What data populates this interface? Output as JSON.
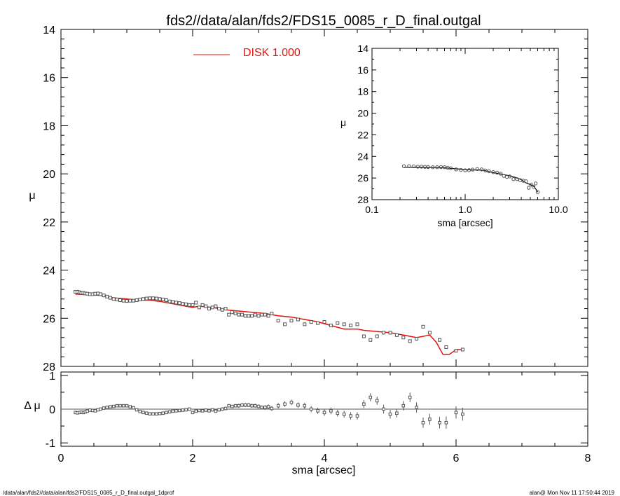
{
  "title": "fds2//data/alan/fds2/FDS15_0085_r_D_final.outgal",
  "footer_left": "/data/alan/fds2//data/alan/fds2/FDS15_0085_r_D_final.outgal_1dprof",
  "footer_right": "alan@  Mon Nov 11 17:50:44 2019",
  "colors": {
    "model": "#e8100a",
    "data": "#555555",
    "axes": "#000000"
  },
  "chart_data": [
    {
      "id": "main",
      "type": "scatter",
      "xlabel": "sma [arcsec]",
      "ylabel": "μ",
      "xlim": [
        0,
        8
      ],
      "ylim": [
        28,
        14
      ],
      "xticks": [
        0,
        2,
        4,
        6,
        8
      ],
      "yticks": [
        14,
        16,
        18,
        20,
        22,
        24,
        26,
        28
      ],
      "legend": {
        "label": "DISK  1.000",
        "placement": "top-center"
      },
      "series": [
        {
          "name": "DISK  1.000",
          "kind": "line",
          "x": [
            0.22,
            0.4,
            0.6,
            0.7,
            0.8,
            1.0,
            1.2,
            1.35,
            1.5,
            1.7,
            1.9,
            2.0,
            2.1,
            2.3,
            2.5,
            2.7,
            2.9,
            3.1,
            3.3,
            3.5,
            3.7,
            3.9,
            4.1,
            4.3,
            4.5,
            4.6,
            4.8,
            5.0,
            5.2,
            5.4,
            5.6,
            5.7,
            5.8,
            5.9,
            6.0,
            6.1
          ],
          "y": [
            25.0,
            25.02,
            25.05,
            25.1,
            25.15,
            25.2,
            25.25,
            25.25,
            25.3,
            25.4,
            25.5,
            25.55,
            25.5,
            25.55,
            25.65,
            25.7,
            25.75,
            25.8,
            25.9,
            25.95,
            26.05,
            26.15,
            26.3,
            26.45,
            26.45,
            26.5,
            26.55,
            26.6,
            26.7,
            26.8,
            26.7,
            27.0,
            27.5,
            27.5,
            27.3,
            27.3
          ]
        },
        {
          "kind": "points",
          "x": [
            0.22,
            0.25,
            0.28,
            0.31,
            0.34,
            0.37,
            0.4,
            0.44,
            0.48,
            0.52,
            0.56,
            0.6,
            0.65,
            0.7,
            0.75,
            0.8,
            0.85,
            0.9,
            0.95,
            1.0,
            1.05,
            1.1,
            1.15,
            1.2,
            1.25,
            1.3,
            1.35,
            1.4,
            1.45,
            1.5,
            1.55,
            1.6,
            1.65,
            1.7,
            1.75,
            1.8,
            1.85,
            1.9,
            1.95,
            2.0,
            2.05,
            2.1,
            2.15,
            2.2,
            2.25,
            2.3,
            2.35,
            2.4,
            2.45,
            2.5,
            2.55,
            2.6,
            2.65,
            2.7,
            2.75,
            2.8,
            2.85,
            2.9,
            2.95,
            3.0,
            3.05,
            3.1,
            3.15,
            3.2,
            3.3,
            3.4,
            3.5,
            3.6,
            3.7,
            3.8,
            3.9,
            4.0,
            4.1,
            4.2,
            4.3,
            4.4,
            4.5,
            4.6,
            4.7,
            4.8,
            4.9,
            5.0,
            5.1,
            5.2,
            5.3,
            5.4,
            5.5,
            5.6,
            5.75,
            5.85,
            6.0,
            6.1
          ],
          "y": [
            24.9,
            24.9,
            24.92,
            24.95,
            24.95,
            24.97,
            24.98,
            25.0,
            25.0,
            24.98,
            24.97,
            25.0,
            25.05,
            25.1,
            25.15,
            25.2,
            25.22,
            25.25,
            25.27,
            25.28,
            25.27,
            25.27,
            25.25,
            25.22,
            25.2,
            25.18,
            25.17,
            25.17,
            25.18,
            25.2,
            25.22,
            25.25,
            25.3,
            25.32,
            25.35,
            25.37,
            25.4,
            25.42,
            25.45,
            25.45,
            25.35,
            25.55,
            25.45,
            25.5,
            25.6,
            25.55,
            25.5,
            25.6,
            25.65,
            25.6,
            25.85,
            25.75,
            25.8,
            25.85,
            25.85,
            25.9,
            25.9,
            25.9,
            25.85,
            25.9,
            25.85,
            25.85,
            25.9,
            25.8,
            26.1,
            26.25,
            26.1,
            26.05,
            26.25,
            26.15,
            26.2,
            26.15,
            26.3,
            26.2,
            26.25,
            26.3,
            26.25,
            26.75,
            26.9,
            26.75,
            26.6,
            26.6,
            26.7,
            26.8,
            26.95,
            26.85,
            26.35,
            26.6,
            26.9,
            27.2,
            27.35,
            27.3
          ]
        }
      ]
    },
    {
      "id": "inset",
      "type": "scatter",
      "xlabel": "sma [arcsec]",
      "ylabel": "μ",
      "xscale": "log",
      "xlim": [
        0.1,
        10
      ],
      "ylim": [
        28,
        14
      ],
      "xticks": [
        0.1,
        1,
        10
      ],
      "xticklabels": [
        "0.1",
        "1.0",
        "10.0"
      ],
      "yticks": [
        14,
        16,
        18,
        20,
        22,
        24,
        26,
        28
      ],
      "series": [
        {
          "kind": "line",
          "x": [
            0.22,
            0.3,
            0.4,
            0.5,
            0.6,
            0.7,
            0.8,
            1.0,
            1.2,
            1.4,
            1.6,
            1.8,
            2.0,
            2.5,
            3.0,
            3.5,
            4.0,
            4.5,
            5.0,
            5.5,
            6.0
          ],
          "y": [
            25.0,
            25.02,
            25.02,
            25.03,
            25.05,
            25.1,
            25.15,
            25.2,
            25.25,
            25.25,
            25.3,
            25.4,
            25.5,
            25.65,
            25.8,
            25.95,
            26.15,
            26.45,
            26.6,
            26.8,
            27.3
          ]
        },
        {
          "kind": "points",
          "x": [
            0.22,
            0.25,
            0.28,
            0.31,
            0.34,
            0.37,
            0.4,
            0.45,
            0.5,
            0.55,
            0.6,
            0.65,
            0.7,
            0.8,
            0.9,
            1.0,
            1.1,
            1.2,
            1.35,
            1.5,
            1.65,
            1.8,
            2.0,
            2.2,
            2.4,
            2.6,
            2.8,
            3.0,
            3.3,
            3.6,
            3.9,
            4.2,
            4.5,
            4.8,
            5.1,
            5.4,
            5.7,
            6.0
          ],
          "y": [
            24.9,
            24.9,
            24.92,
            24.95,
            24.95,
            24.97,
            24.98,
            25.0,
            25.0,
            24.98,
            25.0,
            25.05,
            25.1,
            25.2,
            25.25,
            25.28,
            25.27,
            25.22,
            25.17,
            25.2,
            25.3,
            25.37,
            25.45,
            25.5,
            25.6,
            25.8,
            25.9,
            25.85,
            26.1,
            26.1,
            26.2,
            26.25,
            26.3,
            26.9,
            26.6,
            26.8,
            26.5,
            27.3
          ]
        }
      ]
    },
    {
      "id": "residual",
      "type": "scatter",
      "xlabel": "sma [arcsec]",
      "ylabel": "Δ μ",
      "xlim": [
        0,
        8
      ],
      "ylim": [
        -1.1,
        1.1
      ],
      "xticks": [
        0,
        2,
        4,
        6,
        8
      ],
      "yticks": [
        -1,
        0,
        1
      ],
      "series": [
        {
          "kind": "errorbar",
          "x": [
            0.22,
            0.25,
            0.28,
            0.31,
            0.34,
            0.37,
            0.4,
            0.44,
            0.48,
            0.52,
            0.56,
            0.6,
            0.65,
            0.7,
            0.75,
            0.8,
            0.85,
            0.9,
            0.95,
            1.0,
            1.05,
            1.1,
            1.15,
            1.2,
            1.25,
            1.3,
            1.35,
            1.4,
            1.45,
            1.5,
            1.55,
            1.6,
            1.65,
            1.7,
            1.75,
            1.8,
            1.85,
            1.9,
            1.95,
            2.0,
            2.05,
            2.1,
            2.15,
            2.2,
            2.25,
            2.3,
            2.35,
            2.4,
            2.45,
            2.5,
            2.55,
            2.6,
            2.65,
            2.7,
            2.75,
            2.8,
            2.85,
            2.9,
            2.95,
            3.0,
            3.05,
            3.1,
            3.15,
            3.2,
            3.3,
            3.4,
            3.5,
            3.6,
            3.7,
            3.8,
            3.9,
            4.0,
            4.1,
            4.2,
            4.3,
            4.4,
            4.5,
            4.6,
            4.7,
            4.8,
            4.9,
            5.0,
            5.1,
            5.2,
            5.3,
            5.4,
            5.5,
            5.6,
            5.75,
            5.85,
            6.0,
            6.1
          ],
          "y": [
            -0.1,
            -0.11,
            -0.1,
            -0.09,
            -0.1,
            -0.08,
            -0.06,
            -0.03,
            -0.04,
            -0.05,
            -0.02,
            0.0,
            0.03,
            0.05,
            0.07,
            0.08,
            0.1,
            0.1,
            0.1,
            0.1,
            0.07,
            0.04,
            -0.02,
            -0.07,
            -0.1,
            -0.12,
            -0.14,
            -0.14,
            -0.14,
            -0.13,
            -0.12,
            -0.1,
            -0.08,
            -0.06,
            -0.05,
            -0.04,
            -0.03,
            -0.02,
            0.0,
            -0.1,
            -0.06,
            -0.04,
            -0.05,
            -0.03,
            -0.05,
            -0.02,
            -0.06,
            -0.02,
            0.0,
            0.02,
            0.1,
            0.08,
            0.1,
            0.1,
            0.12,
            0.12,
            0.12,
            0.1,
            0.1,
            0.08,
            0.05,
            0.05,
            0.07,
            0.02,
            0.1,
            0.15,
            0.2,
            0.12,
            0.1,
            0.0,
            -0.05,
            -0.1,
            -0.05,
            -0.12,
            -0.15,
            -0.2,
            -0.2,
            0.15,
            0.35,
            0.25,
            0.0,
            -0.15,
            -0.12,
            0.1,
            0.35,
            0.05,
            -0.4,
            -0.3,
            -0.4,
            -0.4,
            -0.1,
            -0.15
          ],
          "err": [
            0.01,
            0.01,
            0.01,
            0.01,
            0.01,
            0.01,
            0.01,
            0.01,
            0.01,
            0.01,
            0.01,
            0.01,
            0.01,
            0.01,
            0.01,
            0.02,
            0.02,
            0.02,
            0.02,
            0.02,
            0.02,
            0.02,
            0.02,
            0.02,
            0.02,
            0.02,
            0.02,
            0.02,
            0.02,
            0.02,
            0.02,
            0.02,
            0.02,
            0.03,
            0.03,
            0.03,
            0.03,
            0.03,
            0.03,
            0.04,
            0.04,
            0.04,
            0.04,
            0.04,
            0.04,
            0.05,
            0.05,
            0.05,
            0.05,
            0.05,
            0.05,
            0.05,
            0.05,
            0.06,
            0.06,
            0.06,
            0.06,
            0.06,
            0.06,
            0.06,
            0.06,
            0.07,
            0.07,
            0.07,
            0.08,
            0.08,
            0.08,
            0.08,
            0.09,
            0.09,
            0.09,
            0.1,
            0.1,
            0.1,
            0.1,
            0.11,
            0.11,
            0.12,
            0.12,
            0.12,
            0.13,
            0.13,
            0.13,
            0.14,
            0.14,
            0.15,
            0.15,
            0.16,
            0.17,
            0.18,
            0.18,
            0.19
          ]
        }
      ]
    }
  ]
}
